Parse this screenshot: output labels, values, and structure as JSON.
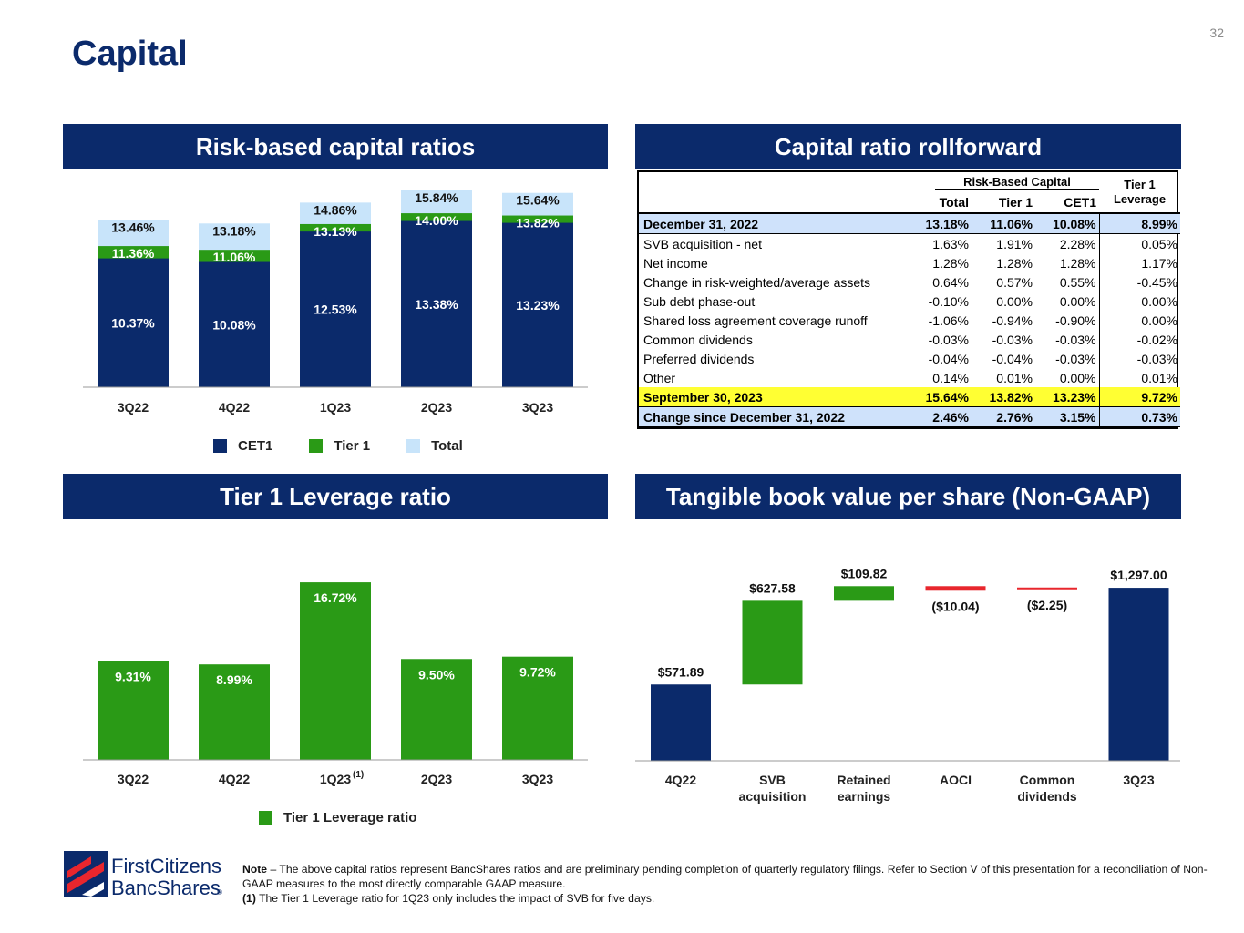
{
  "title": "Capital",
  "page_number": "32",
  "colors": {
    "navy": "#0b2a6b",
    "green": "#2a9a16",
    "light_blue": "#c8e4fa",
    "red": "#e8262d",
    "yellow": "#ffff33",
    "shade": "#cfe2fb"
  },
  "banners": {
    "risk_based": "Risk-based capital ratios",
    "rollforward": "Capital ratio rollforward",
    "tier1_leverage": "Tier 1 Leverage ratio",
    "tbv": "Tangible book value per share (Non-GAAP)"
  },
  "chart_data": [
    {
      "id": "risk_based",
      "type": "bar",
      "stacked_overlap": true,
      "title": "Risk-based capital ratios",
      "categories": [
        "3Q22",
        "4Q22",
        "1Q23",
        "2Q23",
        "3Q23"
      ],
      "series": [
        {
          "name": "CET1",
          "values": [
            10.37,
            10.08,
            12.53,
            13.38,
            13.23
          ],
          "labels": [
            "10.37%",
            "10.08%",
            "12.53%",
            "13.38%",
            "13.23%"
          ]
        },
        {
          "name": "Tier 1",
          "values": [
            11.36,
            11.06,
            13.13,
            14.0,
            13.82
          ],
          "labels": [
            "11.36%",
            "11.06%",
            "13.13%",
            "14.00%",
            "13.82%"
          ]
        },
        {
          "name": "Total",
          "values": [
            13.46,
            13.18,
            14.86,
            15.84,
            15.64
          ],
          "labels": [
            "13.46%",
            "13.18%",
            "14.86%",
            "15.84%",
            "15.64%"
          ]
        }
      ],
      "ylim": [
        0,
        16.5
      ],
      "legend": [
        "CET1",
        "Tier 1",
        "Total"
      ]
    },
    {
      "id": "tier1_leverage",
      "type": "bar",
      "title": "Tier 1 Leverage ratio",
      "categories": [
        "3Q22",
        "4Q22",
        "1Q23",
        "2Q23",
        "3Q23"
      ],
      "category_superscripts": [
        "",
        "",
        "(1)",
        "",
        ""
      ],
      "series": [
        {
          "name": "Tier 1 Leverage ratio",
          "values": [
            9.31,
            8.99,
            16.72,
            9.5,
            9.72
          ],
          "labels": [
            "9.31%",
            "8.99%",
            "16.72%",
            "9.50%",
            "9.72%"
          ]
        }
      ],
      "ylim": [
        0,
        17.5
      ],
      "legend": [
        "Tier 1 Leverage ratio"
      ]
    },
    {
      "id": "tbv",
      "type": "bar",
      "waterfall": true,
      "title": "Tangible book value per share (Non-GAAP)",
      "categories": [
        "4Q22",
        "SVB acquisition",
        "Retained earnings",
        "AOCI",
        "Common dividends",
        "3Q23"
      ],
      "category_lines": [
        [
          "4Q22"
        ],
        [
          "SVB",
          "acquisition"
        ],
        [
          "Retained",
          "earnings"
        ],
        [
          "AOCI"
        ],
        [
          "Common",
          "dividends"
        ],
        [
          "3Q23"
        ]
      ],
      "values": [
        571.89,
        627.58,
        109.82,
        -10.04,
        -2.25,
        1297.0
      ],
      "labels": [
        "$571.89",
        "$627.58",
        "$109.82",
        "($10.04)",
        "($2.25)",
        "$1,297.00"
      ],
      "kinds": [
        "total",
        "increase",
        "increase",
        "decrease",
        "decrease",
        "total"
      ],
      "ylim": [
        0,
        1400
      ]
    }
  ],
  "rollforward": {
    "group_header": "Risk-Based Capital",
    "columns": [
      "Total",
      "Tier 1",
      "CET1"
    ],
    "leverage_header_1": "Tier 1",
    "leverage_header_2": "Leverage",
    "rows": [
      {
        "label": "December 31, 2022",
        "total": "13.18%",
        "tier1": "11.06%",
        "cet1": "10.08%",
        "leverage": "8.99%",
        "style": "shade"
      },
      {
        "label": "SVB acquisition - net",
        "total": "1.63%",
        "tier1": "1.91%",
        "cet1": "2.28%",
        "leverage": "0.05%",
        "style": ""
      },
      {
        "label": "Net income",
        "total": "1.28%",
        "tier1": "1.28%",
        "cet1": "1.28%",
        "leverage": "1.17%",
        "style": ""
      },
      {
        "label": "Change in risk-weighted/average assets",
        "total": "0.64%",
        "tier1": "0.57%",
        "cet1": "0.55%",
        "leverage": "-0.45%",
        "style": ""
      },
      {
        "label": "Sub debt phase-out",
        "total": "-0.10%",
        "tier1": "0.00%",
        "cet1": "0.00%",
        "leverage": "0.00%",
        "style": ""
      },
      {
        "label": "Shared loss agreement coverage runoff",
        "total": "-1.06%",
        "tier1": "-0.94%",
        "cet1": "-0.90%",
        "leverage": "0.00%",
        "style": ""
      },
      {
        "label": "Common dividends",
        "total": "-0.03%",
        "tier1": "-0.03%",
        "cet1": "-0.03%",
        "leverage": "-0.02%",
        "style": ""
      },
      {
        "label": "Preferred dividends",
        "total": "-0.04%",
        "tier1": "-0.04%",
        "cet1": "-0.03%",
        "leverage": "-0.03%",
        "style": ""
      },
      {
        "label": "Other",
        "total": "0.14%",
        "tier1": "0.01%",
        "cet1": "0.00%",
        "leverage": "0.01%",
        "style": ""
      },
      {
        "label": "September 30, 2023",
        "total": "15.64%",
        "tier1": "13.82%",
        "cet1": "13.23%",
        "leverage": "9.72%",
        "style": "yellow"
      },
      {
        "label": "Change since December 31, 2022",
        "total": "2.46%",
        "tier1": "2.76%",
        "cet1": "3.15%",
        "leverage": "0.73%",
        "style": "shade"
      }
    ]
  },
  "note": {
    "lead": "Note",
    "text": " – The above capital ratios represent BancShares ratios and are preliminary pending completion of quarterly regulatory filings. Refer to Section V of this presentation for a reconciliation of Non-GAAP measures to the most directly comparable GAAP measure.",
    "footnote_mark": "(1)",
    "footnote_text": " The Tier 1 Leverage ratio for 1Q23 only includes the impact of SVB for five days."
  },
  "logo": {
    "line1": "FirstCitizens",
    "line2": "BancShares",
    "mark": "®"
  }
}
